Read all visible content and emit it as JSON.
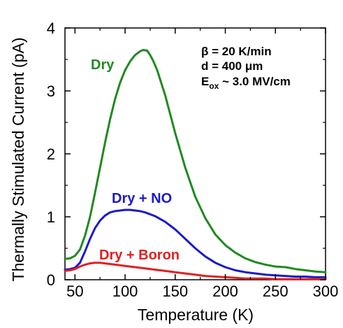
{
  "chart_data": {
    "type": "line",
    "xlabel": "Temperature (K)",
    "ylabel": "Thermally Stimulated Current (pA)",
    "xlim": [
      40,
      300
    ],
    "ylim": [
      0,
      4
    ],
    "xticks": [
      50,
      100,
      150,
      200,
      250,
      300
    ],
    "yticks": [
      0,
      1,
      2,
      3,
      4
    ],
    "xtick_labels": [
      "50",
      "100",
      "150",
      "200",
      "250",
      "300"
    ],
    "ytick_labels": [
      "0",
      "1",
      "2",
      "3",
      "4"
    ],
    "grid": false,
    "annotations": {
      "line1": "β = 20 K/min",
      "line2": "d = 400 μm",
      "line3_main": "E",
      "line3_sub": "ox",
      "line3_rest": " ~ 3.0 MV/cm"
    },
    "series": [
      {
        "name": "Dry",
        "color": "#1f8a1f",
        "x": [
          40,
          45,
          50,
          55,
          60,
          65,
          70,
          75,
          80,
          85,
          90,
          95,
          100,
          105,
          110,
          115,
          118,
          122,
          125,
          128,
          132,
          135,
          140,
          145,
          150,
          160,
          170,
          180,
          190,
          200,
          210,
          220,
          230,
          240,
          250,
          260,
          270,
          280,
          290,
          300
        ],
        "y": [
          0.33,
          0.34,
          0.38,
          0.48,
          0.7,
          1.0,
          1.38,
          1.78,
          2.18,
          2.55,
          2.87,
          3.13,
          3.33,
          3.47,
          3.57,
          3.63,
          3.65,
          3.64,
          3.57,
          3.48,
          3.33,
          3.18,
          2.93,
          2.63,
          2.33,
          1.78,
          1.32,
          0.98,
          0.72,
          0.55,
          0.43,
          0.34,
          0.28,
          0.24,
          0.21,
          0.2,
          0.17,
          0.15,
          0.13,
          0.12
        ]
      },
      {
        "name": "Dry + NO",
        "color": "#1a1acc",
        "x": [
          40,
          45,
          50,
          55,
          60,
          65,
          70,
          75,
          80,
          85,
          90,
          95,
          100,
          105,
          110,
          115,
          120,
          130,
          140,
          150,
          160,
          170,
          180,
          190,
          200,
          210,
          220,
          230,
          240,
          250,
          260,
          270,
          280,
          290,
          300
        ],
        "y": [
          0.16,
          0.17,
          0.19,
          0.27,
          0.45,
          0.65,
          0.82,
          0.94,
          1.02,
          1.07,
          1.09,
          1.1,
          1.11,
          1.11,
          1.1,
          1.09,
          1.07,
          1.01,
          0.92,
          0.8,
          0.65,
          0.5,
          0.37,
          0.27,
          0.2,
          0.15,
          0.12,
          0.1,
          0.08,
          0.07,
          0.06,
          0.05,
          0.05,
          0.04,
          0.04
        ]
      },
      {
        "name": "Dry + Boron",
        "color": "#e02020",
        "x": [
          40,
          45,
          50,
          55,
          60,
          65,
          70,
          75,
          80,
          85,
          90,
          100,
          110,
          120,
          130,
          140,
          150,
          160,
          170,
          180,
          190,
          200,
          210,
          220,
          230,
          240,
          250,
          260,
          270,
          280,
          290,
          300
        ],
        "y": [
          0.14,
          0.15,
          0.17,
          0.21,
          0.24,
          0.26,
          0.27,
          0.27,
          0.26,
          0.25,
          0.24,
          0.22,
          0.2,
          0.18,
          0.16,
          0.14,
          0.12,
          0.1,
          0.08,
          0.06,
          0.05,
          0.04,
          0.03,
          0.02,
          0.02,
          0.02,
          0.01,
          0.01,
          0.01,
          0.01,
          0.01,
          0.01
        ]
      }
    ]
  }
}
